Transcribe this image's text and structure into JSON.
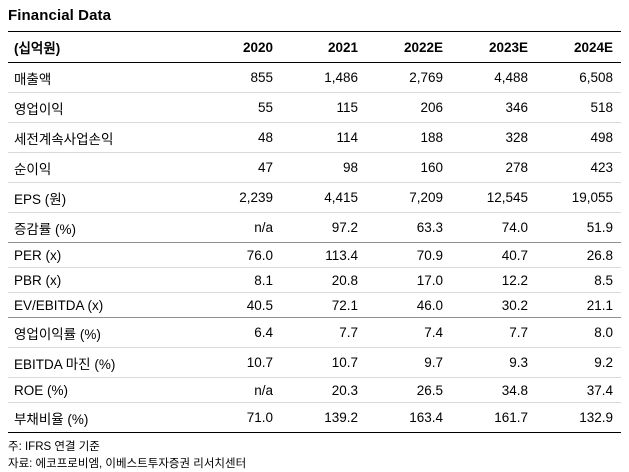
{
  "title": "Financial Data",
  "table": {
    "unit_header": "(십억원)",
    "columns": [
      "2020",
      "2021",
      "2022E",
      "2023E",
      "2024E"
    ],
    "rows": [
      {
        "label": "매출액",
        "values": [
          "855",
          "1,486",
          "2,769",
          "4,488",
          "6,508"
        ],
        "separator_after": false
      },
      {
        "label": "영업이익",
        "values": [
          "55",
          "115",
          "206",
          "346",
          "518"
        ],
        "separator_after": false
      },
      {
        "label": "세전계속사업손익",
        "values": [
          "48",
          "114",
          "188",
          "328",
          "498"
        ],
        "separator_after": false
      },
      {
        "label": "순이익",
        "values": [
          "47",
          "98",
          "160",
          "278",
          "423"
        ],
        "separator_after": false
      },
      {
        "label": "EPS (원)",
        "values": [
          "2,239",
          "4,415",
          "7,209",
          "12,545",
          "19,055"
        ],
        "separator_after": false
      },
      {
        "label": "증감률 (%)",
        "values": [
          "n/a",
          "97.2",
          "63.3",
          "74.0",
          "51.9"
        ],
        "separator_after": true
      },
      {
        "label": "PER (x)",
        "values": [
          "76.0",
          "113.4",
          "70.9",
          "40.7",
          "26.8"
        ],
        "separator_after": false
      },
      {
        "label": "PBR (x)",
        "values": [
          "8.1",
          "20.8",
          "17.0",
          "12.2",
          "8.5"
        ],
        "separator_after": false
      },
      {
        "label": "EV/EBITDA (x)",
        "values": [
          "40.5",
          "72.1",
          "46.0",
          "30.2",
          "21.1"
        ],
        "separator_after": true
      },
      {
        "label": "영업이익률 (%)",
        "values": [
          "6.4",
          "7.7",
          "7.4",
          "7.7",
          "8.0"
        ],
        "separator_after": false
      },
      {
        "label": "EBITDA 마진 (%)",
        "values": [
          "10.7",
          "10.7",
          "9.7",
          "9.3",
          "9.2"
        ],
        "separator_after": false
      },
      {
        "label": "ROE (%)",
        "values": [
          "n/a",
          "20.3",
          "26.5",
          "34.8",
          "37.4"
        ],
        "separator_after": false
      },
      {
        "label": "부채비율 (%)",
        "values": [
          "71.0",
          "139.2",
          "163.4",
          "161.7",
          "132.9"
        ],
        "separator_after": false
      }
    ]
  },
  "footnotes": [
    "주: IFRS 연결 기준",
    "자료: 에코프로비엠, 이베스트투자증권 리서치센터"
  ]
}
